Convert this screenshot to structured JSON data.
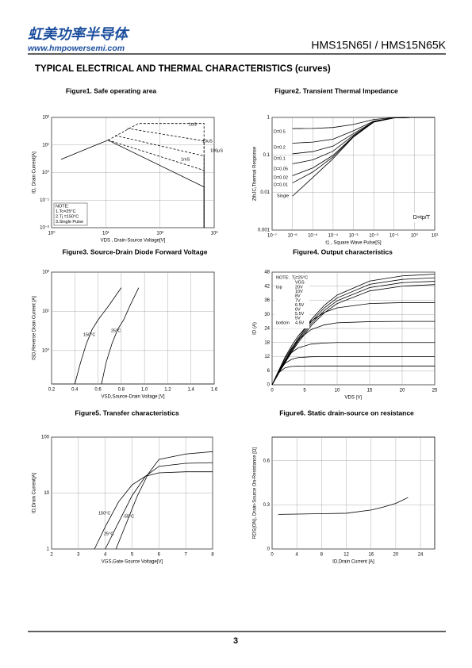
{
  "header": {
    "logo": "虹美功率半导体",
    "website": "www.hmpowersemi.com",
    "part": "HMS15N65I / HMS15N65K"
  },
  "section_title": "TYPICAL ELECTRICAL AND THERMAL CHARACTERISTICS (curves)",
  "page_number": "3",
  "chart_data": [
    {
      "type": "line",
      "title": "Figure1. Safe operating area",
      "xlabel": "VDS , Drain-Source Voltage[V]",
      "ylabel": "ID, Drain Current[A]",
      "xscale": "log",
      "yscale": "log",
      "xlim": [
        1,
        1000
      ],
      "ylim": [
        0.01,
        100
      ],
      "grid": true,
      "xticks": [
        {
          "value": 1,
          "label": "10⁰"
        },
        {
          "value": 10,
          "label": "10¹"
        },
        {
          "value": 100,
          "label": "10²"
        },
        {
          "value": 1000,
          "label": "10³"
        }
      ],
      "yticks": [
        {
          "value": 0.01,
          "label": "10⁻²"
        },
        {
          "value": 0.1,
          "label": "10⁻¹"
        },
        {
          "value": 1,
          "label": "10⁰"
        },
        {
          "value": 10,
          "label": "10¹"
        },
        {
          "value": 100,
          "label": "10²"
        }
      ],
      "notes": [
        "NOTE:",
        "1.Tc=25°C",
        "2.Tj =150°C",
        "3.Single Pulse"
      ],
      "series": [
        {
          "name": "1uS",
          "color": "#000000",
          "dashed": true,
          "x": [
            11,
            40,
            650,
            650
          ],
          "values": [
            15,
            60,
            60,
            0.01
          ]
        },
        {
          "name": "10uS",
          "color": "#000000",
          "dashed": true,
          "x": [
            25,
            650,
            650
          ],
          "values": [
            40,
            14,
            0.01
          ]
        },
        {
          "name": "100μS",
          "color": "#000000",
          "dashed": true,
          "x": [
            15,
            650,
            650
          ],
          "values": [
            22,
            4,
            0.01
          ]
        },
        {
          "name": "1mS",
          "color": "#000000",
          "dashed": true,
          "x": [
            11,
            650,
            650
          ],
          "values": [
            15,
            1.2,
            0.01
          ]
        },
        {
          "color": "#000000",
          "dashed": false,
          "x": [
            1.5,
            11,
            650,
            650
          ],
          "values": [
            3,
            15,
            0.3,
            0.01
          ]
        }
      ]
    },
    {
      "type": "line",
      "title": "Figure2. Transient Thermal Impedance",
      "xlabel": "t1 ,  Square Wave Pulse[S]",
      "ylabel": "ZthJC,Thermal Response",
      "xscale": "log",
      "yscale": "log",
      "xlim": [
        1e-07,
        10
      ],
      "ylim": [
        0.001,
        1
      ],
      "grid": true,
      "xticks": [
        {
          "value": 1e-07,
          "label": "10⁻⁷"
        },
        {
          "value": 1e-06,
          "label": "10⁻⁶"
        },
        {
          "value": 1e-05,
          "label": "10⁻⁵"
        },
        {
          "value": 0.0001,
          "label": "10⁻⁴"
        },
        {
          "value": 0.001,
          "label": "10⁻³"
        },
        {
          "value": 0.01,
          "label": "10⁻²"
        },
        {
          "value": 0.1,
          "label": "10⁻¹"
        },
        {
          "value": 1,
          "label": "10⁰"
        },
        {
          "value": 10,
          "label": "10¹"
        }
      ],
      "yticks": [
        0.001,
        0.01,
        0.1,
        1
      ],
      "annotation": "D=tp/T",
      "x": [
        1e-06,
        1e-05,
        0.0001,
        0.001,
        0.01,
        0.1,
        1,
        10
      ],
      "series": [
        {
          "name": "D=0.5",
          "color": "#000000",
          "values": [
            0.504,
            0.51,
            0.54,
            0.65,
            0.88,
            0.985,
            1,
            1
          ]
        },
        {
          "name": "D=0.2",
          "color": "#000000",
          "values": [
            0.206,
            0.22,
            0.264,
            0.44,
            0.8,
            0.976,
            1,
            1
          ]
        },
        {
          "name": "D=0.1",
          "color": "#000000",
          "values": [
            0.107,
            0.123,
            0.172,
            0.37,
            0.775,
            0.973,
            1,
            1
          ]
        },
        {
          "name": "D=0.05",
          "color": "#000000",
          "values": [
            0.058,
            0.074,
            0.126,
            0.335,
            0.763,
            0.97,
            1,
            1
          ]
        },
        {
          "name": "D=0.02",
          "color": "#000000",
          "values": [
            0.028,
            0.045,
            0.098,
            0.314,
            0.755,
            0.97,
            1,
            1
          ]
        },
        {
          "name": "D=0.01",
          "color": "#000000",
          "values": [
            0.018,
            0.035,
            0.089,
            0.307,
            0.753,
            0.97,
            1,
            1
          ]
        },
        {
          "name": "Single",
          "color": "#000000",
          "values": [
            0.008,
            0.025,
            0.08,
            0.3,
            0.75,
            0.97,
            1,
            1
          ]
        }
      ]
    },
    {
      "type": "line",
      "title": "Figure3. Source-Drain Diode Forward Voltage",
      "xlabel": "VSD,Source-Drain Voltage  [V]",
      "ylabel": "ISD,Reverse Drain Current [A]",
      "xscale": "linear",
      "yscale": "log",
      "xlim": [
        0.2,
        1.6
      ],
      "ylim": [
        0.14,
        100
      ],
      "grid": true,
      "xticks": [
        0.2,
        0.4,
        0.6,
        0.8,
        {
          "value": 1,
          "label": "1.0"
        },
        1.2,
        1.4,
        1.6
      ],
      "yticks": [
        {
          "value": 1,
          "label": "10⁰"
        },
        {
          "value": 10,
          "label": "10¹"
        },
        {
          "value": 100,
          "label": "10²"
        }
      ],
      "series": [
        {
          "name": "150°C",
          "color": "#000000",
          "x": [
            0.4,
            0.45,
            0.5,
            0.55,
            0.6,
            0.7,
            0.8
          ],
          "values": [
            0.14,
            0.5,
            1.5,
            3.5,
            6,
            15,
            40
          ]
        },
        {
          "name": "25°C",
          "color": "#000000",
          "x": [
            0.63,
            0.67,
            0.72,
            0.77,
            0.82,
            0.88,
            0.95
          ],
          "values": [
            0.14,
            0.5,
            1.5,
            3.5,
            6,
            15,
            40
          ]
        }
      ]
    },
    {
      "type": "line",
      "title": "Figure4. Output characteristics",
      "xlabel": "VDS (V)",
      "ylabel": "ID (A)",
      "xscale": "linear",
      "yscale": "linear",
      "xlim": [
        0,
        25
      ],
      "ylim": [
        0,
        48
      ],
      "grid": true,
      "xticks": [
        0,
        5,
        10,
        15,
        20,
        25
      ],
      "yticks": [
        0,
        6,
        12,
        18,
        24,
        30,
        36,
        42,
        48
      ],
      "note": "NOTE:",
      "condition": "Tj=25°C",
      "legend_title": "VGS",
      "legend_top": "top",
      "legend_bottom": "bottom",
      "x": [
        0,
        1,
        2,
        3,
        4,
        6,
        8,
        10,
        15,
        20,
        25
      ],
      "series": [
        {
          "name": "4.5V",
          "color": "#000000",
          "values": [
            0,
            5.08,
            7.24,
            7.82,
            7.96,
            8,
            8,
            8,
            8,
            8,
            8
          ]
        },
        {
          "name": "5V",
          "color": "#000000",
          "values": [
            0,
            5.55,
            9.14,
            10.86,
            11.57,
            11.94,
            12,
            12,
            12,
            12,
            12
          ]
        },
        {
          "name": "5.5V",
          "color": "#000000",
          "values": [
            0,
            5.79,
            10.5,
            13.7,
            15.7,
            17.35,
            17.8,
            18,
            18,
            18,
            18
          ]
        },
        {
          "name": "6V",
          "color": "#000000",
          "values": [
            0,
            5.9,
            11.3,
            15.7,
            19.2,
            23.5,
            25.5,
            26.4,
            26.9,
            27,
            27
          ]
        },
        {
          "name": "6.5V",
          "color": "#000000",
          "values": [
            0,
            5.95,
            11.8,
            16.6,
            20.8,
            27.1,
            30.8,
            32.8,
            34.6,
            35,
            35
          ]
        },
        {
          "name": "7V",
          "color": "#000000",
          "values": [
            0,
            4.77,
            9.4,
            13.8,
            17.9,
            25.1,
            30.6,
            34.6,
            40,
            42,
            42.7
          ]
        },
        {
          "name": "8V",
          "color": "#000000",
          "values": [
            0,
            4.94,
            9.74,
            14.3,
            18.6,
            25.9,
            31.6,
            35.8,
            41.4,
            43.5,
            44.1
          ]
        },
        {
          "name": "10V",
          "color": "#000000",
          "values": [
            0,
            5.1,
            10.1,
            14.8,
            19.2,
            26.8,
            32.7,
            37,
            42.8,
            44.9,
            45.6
          ]
        },
        {
          "name": "20V",
          "color": "#000000",
          "values": [
            0,
            5.27,
            10.4,
            15.3,
            19.8,
            27.7,
            33.8,
            38.2,
            44.2,
            46.4,
            47.1
          ]
        }
      ]
    },
    {
      "type": "line",
      "title": "Figure5. Transfer characteristics",
      "xlabel": "VGS,Gate-Source Voltage[V]",
      "ylabel": "ID,Drain Current[A]",
      "xscale": "linear",
      "yscale": "log",
      "xlim": [
        2,
        8
      ],
      "ylim": [
        1,
        100
      ],
      "grid": true,
      "xticks": [
        2,
        3,
        4,
        5,
        6,
        7,
        8
      ],
      "yticks": [
        1,
        10,
        100
      ],
      "series": [
        {
          "name": "150°C",
          "color": "#000000",
          "x": [
            3.6,
            4,
            4.5,
            5,
            5.5,
            6,
            7,
            8
          ],
          "values": [
            1,
            2.5,
            7,
            14,
            20,
            23,
            24,
            24
          ]
        },
        {
          "name": "25°C",
          "color": "#000000",
          "x": [
            4,
            4.5,
            5,
            5.5,
            6,
            7,
            8
          ],
          "values": [
            1,
            3,
            9,
            20,
            30,
            34,
            35
          ]
        },
        {
          "name": "-55°C",
          "color": "#000000",
          "x": [
            4.4,
            4.8,
            5.2,
            5.6,
            6,
            7,
            8
          ],
          "values": [
            1,
            3,
            9,
            22,
            40,
            50,
            55
          ]
        }
      ]
    },
    {
      "type": "line",
      "title": "Figure6. Static drain-source on resistance",
      "xlabel": "ID,Drain Current [A]",
      "ylabel": "RDS(ON), Drain-Source On-Resistance [Ω]",
      "xscale": "linear",
      "yscale": "linear",
      "xlim": [
        0,
        26.3
      ],
      "ylim": [
        0,
        0.76
      ],
      "grid": true,
      "xticks": [
        0,
        4,
        8,
        12,
        16,
        20,
        24
      ],
      "yticks": [
        0,
        0.3,
        0.6
      ],
      "series": [
        {
          "color": "#000000",
          "x": [
            1,
            4,
            8,
            12,
            16,
            18,
            20,
            22
          ],
          "values": [
            0.235,
            0.237,
            0.24,
            0.243,
            0.265,
            0.285,
            0.31,
            0.35
          ]
        }
      ]
    }
  ]
}
